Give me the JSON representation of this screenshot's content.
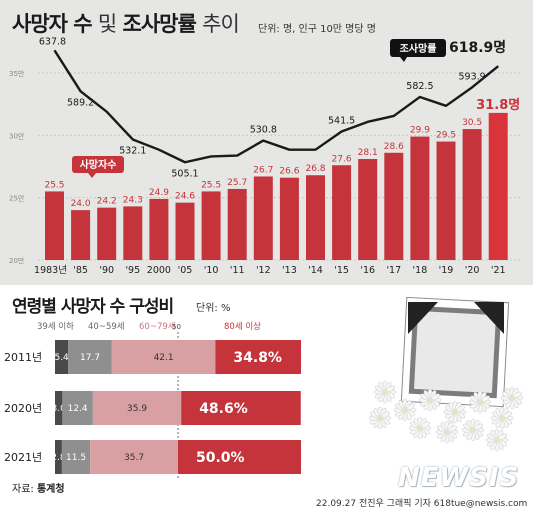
{
  "title": {
    "part1": "사망자 수",
    "part2": "및",
    "part3": "조사망률",
    "part4": "추이",
    "unit": "단위: 명, 인구 10만 명당 명"
  },
  "subtitle": {
    "text": "연령별 사망자 수 구성비",
    "unit": "단위: %"
  },
  "source": {
    "label": "자료:",
    "name": "통계청"
  },
  "credit": "22.09.27 전진우 그래픽 기자 618tue@newsis.com",
  "logo": "NEWSIS",
  "colors": {
    "bar": "#c4343a",
    "bar_highlight": "#d8343a",
    "line": "#1a1a1a",
    "panel": "#e6e6e4"
  },
  "chart_data": [
    {
      "type": "bar",
      "categories": [
        "1983년",
        "'85",
        "'90",
        "'95",
        "2000",
        "'05",
        "'10",
        "'11",
        "'12",
        "'13",
        "'14",
        "'15",
        "'16",
        "'17",
        "'18",
        "'19",
        "'20",
        "'21"
      ],
      "series": [
        {
          "name": "사망자수",
          "type": "bar",
          "axis": "left",
          "values": [
            25.5,
            24.0,
            24.2,
            24.3,
            24.9,
            24.6,
            25.5,
            25.7,
            26.7,
            26.6,
            26.8,
            27.6,
            28.1,
            28.6,
            29.9,
            29.5,
            30.5,
            31.8
          ],
          "labels": [
            "25.5",
            "24.0",
            "24.2",
            "24.3",
            "24.9",
            "24.6",
            "25.5",
            "25.7",
            "26.7",
            "26.6",
            "26.8",
            "27.6",
            "28.1",
            "28.6",
            "29.9",
            "29.5",
            "30.5",
            "31.8명"
          ]
        },
        {
          "name": "조사망률",
          "type": "line",
          "axis": "right",
          "values": [
            637.8,
            589.2,
            null,
            532.1,
            null,
            505.1,
            null,
            null,
            530.8,
            null,
            null,
            541.5,
            null,
            null,
            582.5,
            null,
            593.9,
            618.9
          ],
          "labels": [
            "637.8",
            "589.2",
            "",
            "532.1",
            "",
            "505.1",
            "",
            "",
            "530.8",
            "",
            "",
            "541.5",
            "",
            "",
            "582.5",
            "",
            "593.9",
            "618.9명"
          ]
        }
      ],
      "ylim": [
        20,
        35
      ],
      "yticks": [
        "20만",
        "25만",
        "30만",
        "35만"
      ]
    },
    {
      "type": "bar",
      "stacked": true,
      "orientation": "horizontal",
      "categories": [
        "2011년",
        "2020년",
        "2021년"
      ],
      "axis_marker": "50",
      "series": [
        {
          "name": "39세 이하",
          "values": [
            5.4,
            3.0,
            2.8
          ],
          "labels": [
            "5.4",
            "3.0",
            "2.8"
          ]
        },
        {
          "name": "40~59세",
          "values": [
            17.7,
            12.4,
            11.5
          ],
          "labels": [
            "17.7",
            "12.4",
            "11.5"
          ]
        },
        {
          "name": "60~79세",
          "values": [
            42.1,
            35.9,
            35.7
          ],
          "labels": [
            "42.1",
            "35.9",
            "35.7"
          ]
        },
        {
          "name": "80세 이상",
          "values": [
            34.8,
            48.6,
            50.0
          ],
          "labels": [
            "34.8%",
            "48.6%",
            "50.0%"
          ]
        }
      ]
    }
  ]
}
